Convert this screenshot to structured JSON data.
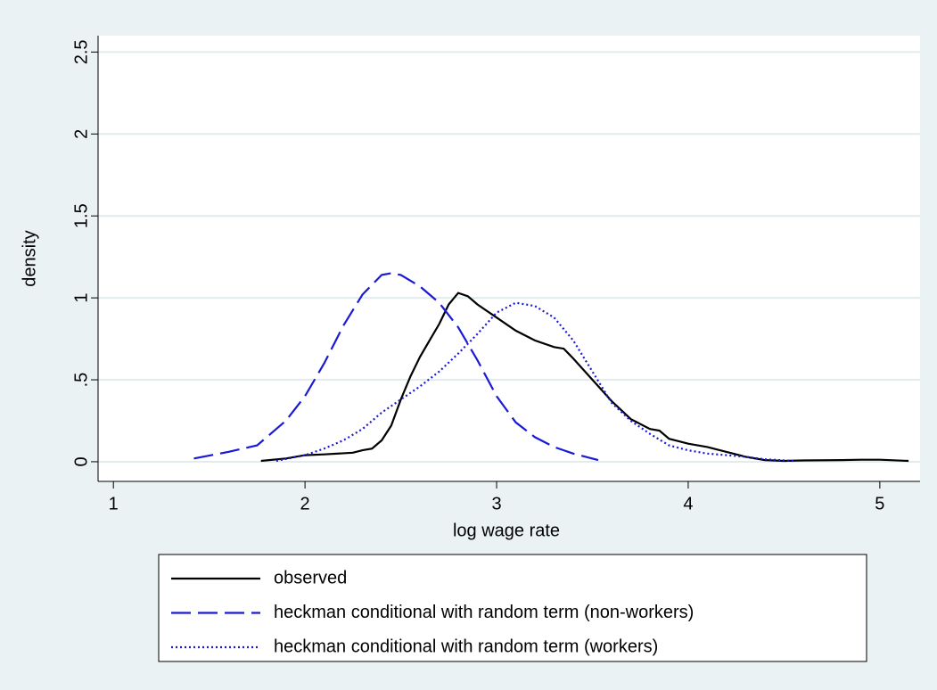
{
  "chart_data": {
    "type": "line",
    "x_label": "log wage rate",
    "y_label": "density",
    "xlim": [
      0.92,
      5.21
    ],
    "ylim": [
      -0.12,
      2.6
    ],
    "xticks": [
      1,
      2,
      3,
      4,
      5
    ],
    "yticks": [
      0,
      {
        "value": 0.5,
        "label": ".5"
      },
      1,
      1.5,
      2,
      2.5
    ],
    "grid": true,
    "legend": "bottom",
    "series": [
      {
        "name": "observed",
        "color": "#000000",
        "dash": "solid",
        "x": [
          1.77,
          1.9,
          2.0,
          2.1,
          2.25,
          2.3,
          2.35,
          2.4,
          2.45,
          2.5,
          2.55,
          2.6,
          2.65,
          2.7,
          2.75,
          2.8,
          2.85,
          2.9,
          3.0,
          3.1,
          3.2,
          3.3,
          3.35,
          3.4,
          3.5,
          3.6,
          3.7,
          3.8,
          3.85,
          3.9,
          4.0,
          4.1,
          4.2,
          4.3,
          4.4,
          4.5,
          4.6,
          4.8,
          4.9,
          5.0,
          5.15
        ],
        "values": [
          0.005,
          0.02,
          0.04,
          0.045,
          0.055,
          0.07,
          0.08,
          0.13,
          0.22,
          0.38,
          0.52,
          0.64,
          0.74,
          0.84,
          0.96,
          1.03,
          1.01,
          0.96,
          0.88,
          0.8,
          0.74,
          0.7,
          0.69,
          0.63,
          0.5,
          0.37,
          0.26,
          0.2,
          0.19,
          0.14,
          0.11,
          0.09,
          0.06,
          0.03,
          0.01,
          0.005,
          0.008,
          0.01,
          0.012,
          0.012,
          0.005
        ]
      },
      {
        "name": "heckman conditional with random term (non-workers)",
        "color": "#1a1ad6",
        "dash": "dashed",
        "x": [
          1.42,
          1.6,
          1.75,
          1.9,
          2.0,
          2.1,
          2.2,
          2.3,
          2.4,
          2.45,
          2.5,
          2.6,
          2.7,
          2.8,
          2.9,
          3.0,
          3.1,
          3.2,
          3.3,
          3.4,
          3.53
        ],
        "values": [
          0.02,
          0.06,
          0.1,
          0.25,
          0.4,
          0.6,
          0.83,
          1.02,
          1.14,
          1.15,
          1.14,
          1.07,
          0.97,
          0.82,
          0.62,
          0.4,
          0.24,
          0.15,
          0.09,
          0.05,
          0.01
        ]
      },
      {
        "name": "heckman conditional with random term (workers)",
        "color": "#1a1ad6",
        "dash": "dotted",
        "x": [
          1.85,
          2.0,
          2.1,
          2.2,
          2.3,
          2.4,
          2.5,
          2.6,
          2.7,
          2.8,
          2.9,
          3.0,
          3.1,
          3.2,
          3.3,
          3.4,
          3.5,
          3.6,
          3.7,
          3.8,
          3.9,
          4.0,
          4.1,
          4.2,
          4.3,
          4.4,
          4.55
        ],
        "values": [
          0.005,
          0.04,
          0.08,
          0.13,
          0.2,
          0.3,
          0.38,
          0.46,
          0.55,
          0.66,
          0.78,
          0.91,
          0.97,
          0.95,
          0.88,
          0.74,
          0.55,
          0.36,
          0.25,
          0.17,
          0.1,
          0.07,
          0.05,
          0.04,
          0.03,
          0.015,
          0.005
        ]
      }
    ]
  }
}
